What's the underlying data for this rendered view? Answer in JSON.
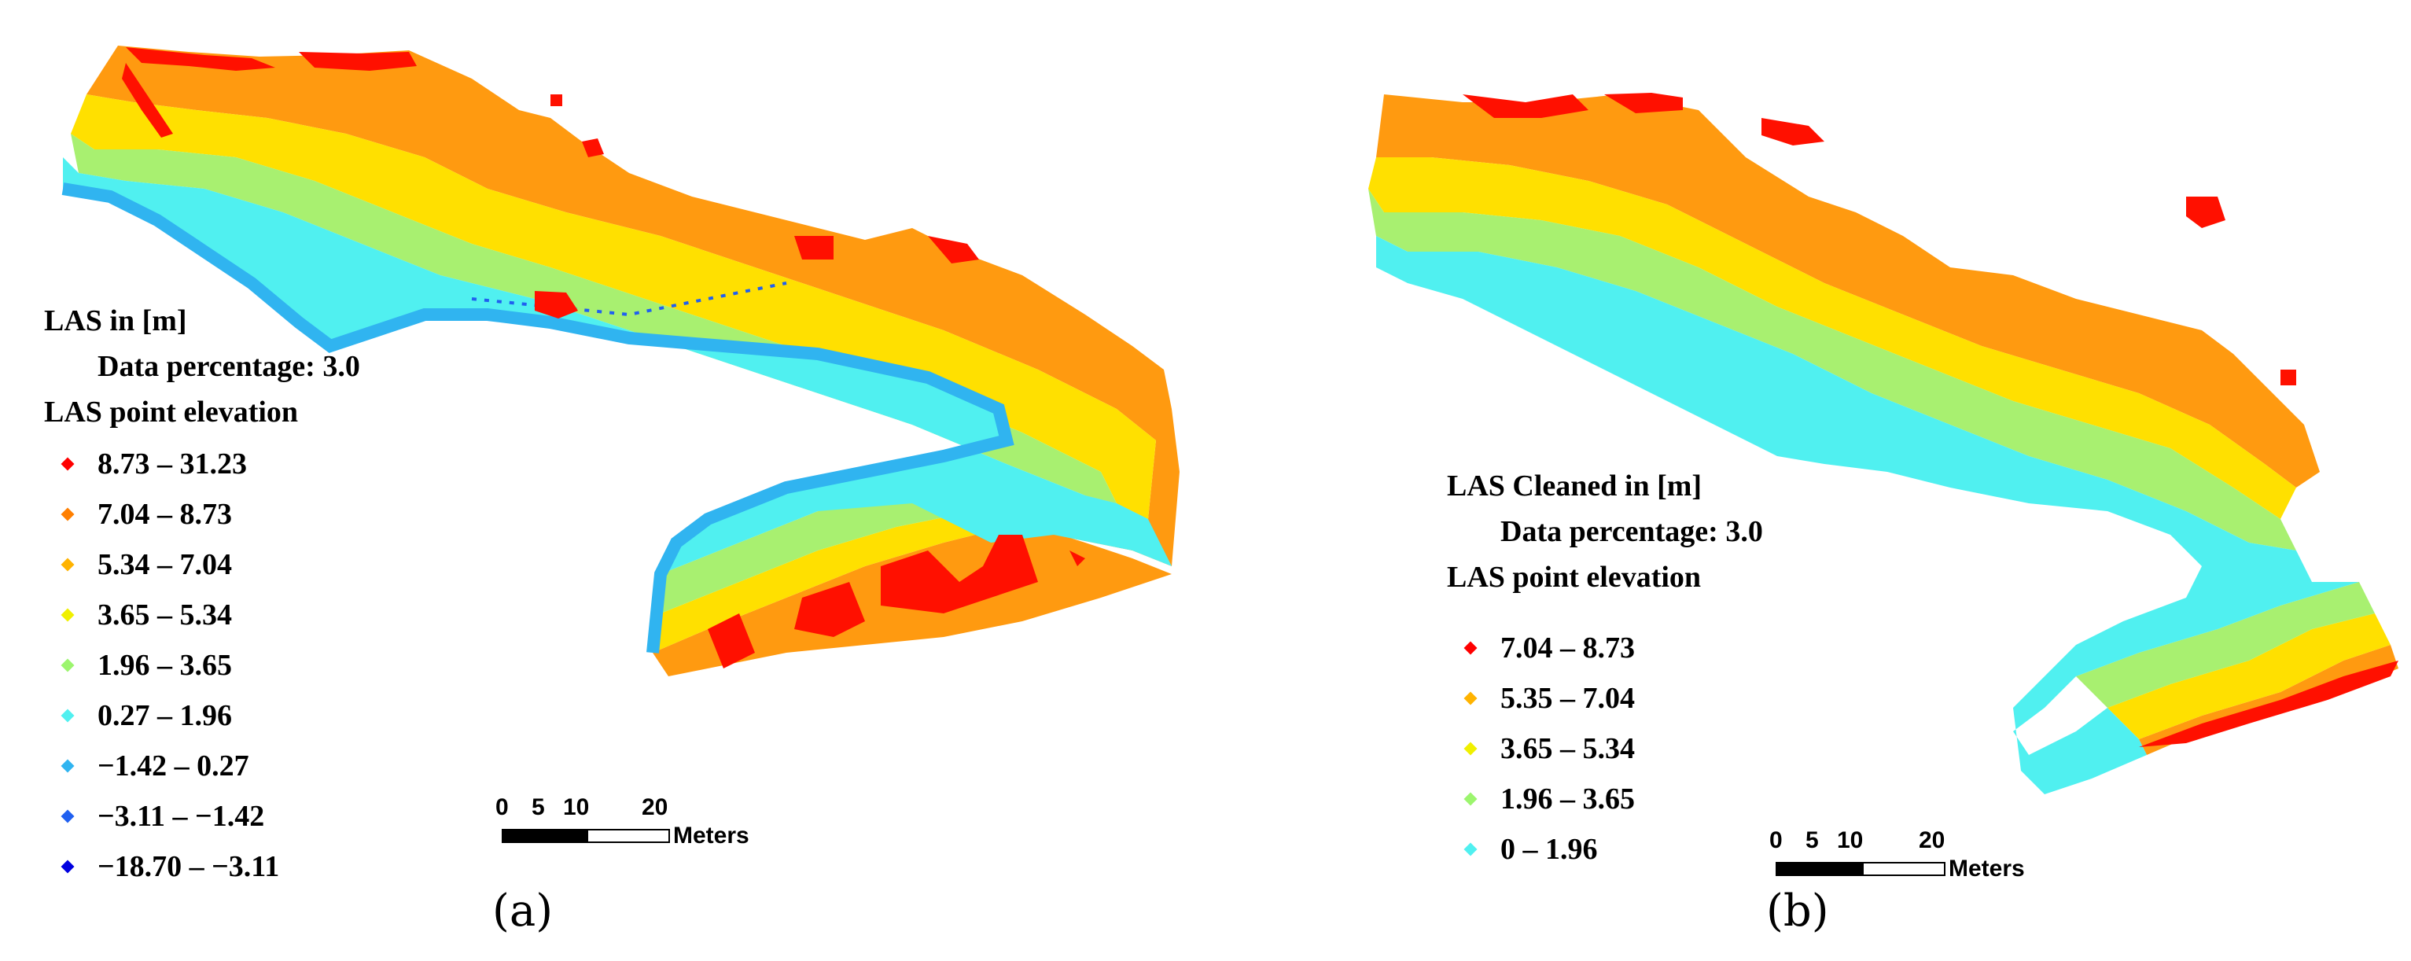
{
  "panel_a": {
    "legend": {
      "title": "LAS in [m]",
      "subtitle": "Data percentage: 3.0",
      "heading": "LAS point elevation",
      "classes": [
        {
          "label": "8.73 – 31.23",
          "color": "#ff0000"
        },
        {
          "label": "7.04 – 8.73",
          "color": "#ff7f00"
        },
        {
          "label": "5.34 – 7.04",
          "color": "#ffb300"
        },
        {
          "label": "3.65 – 5.34",
          "color": "#f0f000"
        },
        {
          "label": "1.96 – 3.65",
          "color": "#9cf56e"
        },
        {
          "label": "0.27 – 1.96",
          "color": "#50f0f0"
        },
        {
          "label": "−1.42 – 0.27",
          "color": "#30b4f0"
        },
        {
          "label": "−3.11 – −1.42",
          "color": "#2060f0"
        },
        {
          "label": "−18.70 – −3.11",
          "color": "#0000e0"
        }
      ]
    },
    "scale_bar": {
      "ticks": [
        "0",
        "5",
        "10",
        "20"
      ],
      "unit": "Meters"
    },
    "caption": "(a)"
  },
  "panel_b": {
    "legend": {
      "title": "LAS Cleaned in [m]",
      "subtitle": "Data percentage: 3.0",
      "heading": "LAS point elevation",
      "classes": [
        {
          "label": "7.04 – 8.73",
          "color": "#ff0000"
        },
        {
          "label": "5.35 – 7.04",
          "color": "#ffb300"
        },
        {
          "label": "3.65 – 5.34",
          "color": "#f0f000"
        },
        {
          "label": "1.96 – 3.65",
          "color": "#9cf56e"
        },
        {
          "label": "0 – 1.96",
          "color": "#50f0f0"
        }
      ]
    },
    "scale_bar": {
      "ticks": [
        "0",
        "5",
        "10",
        "20"
      ],
      "unit": "Meters"
    },
    "caption": "(b)"
  }
}
